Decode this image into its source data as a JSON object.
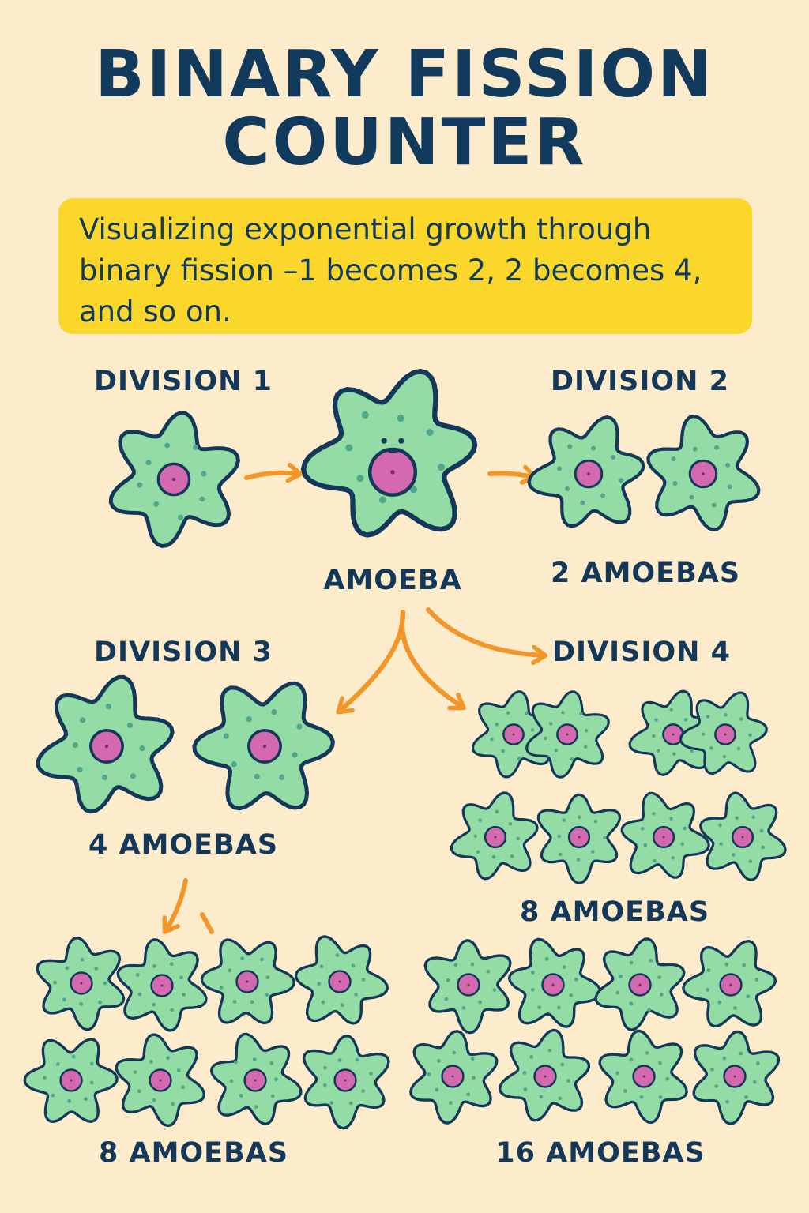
{
  "title": {
    "line1": "BINARY FISSION",
    "line2": "COUNTER"
  },
  "subtitle": "Visualizing exponential growth through binary fission –1 becomes 2, 2 becomes 4, and so on.",
  "labels": {
    "division1": "DIVISION 1",
    "division2": "DIVISION 2",
    "division3": "DIVISION 3",
    "division4": "DIVISION 4",
    "amoeba": "AMOEBA",
    "count_2": "2 AMOEBAS",
    "count_4": "4 AMOEBAS",
    "count_8_right": "8 AMOEBAS",
    "count_8_left": "8 AMOEBAS",
    "count_16": "16 AMOEBAS"
  },
  "colors": {
    "background": "#fdeccb",
    "banner": "#fbd72c",
    "text": "#123a5c",
    "cell_fill": "#93dca6",
    "cell_outline": "#13385a",
    "nucleus": "#d36ab0",
    "arrow": "#f2962a"
  }
}
